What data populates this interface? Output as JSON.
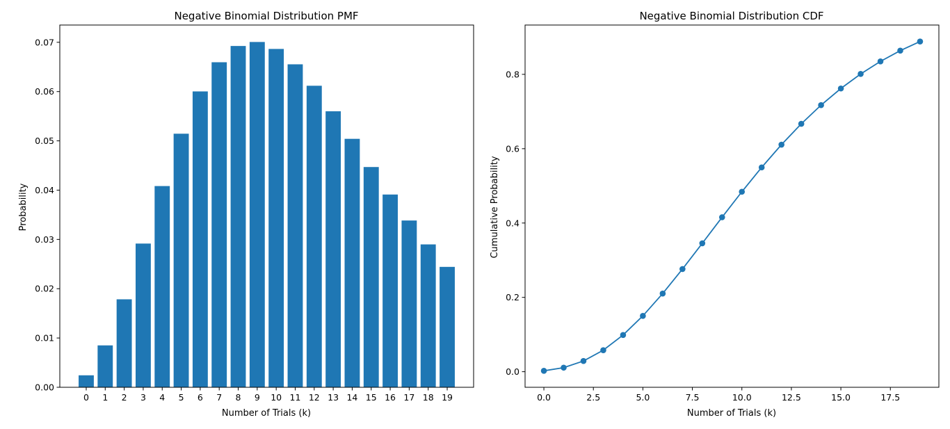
{
  "chart_data": [
    {
      "type": "bar",
      "title": "Negative Binomial Distribution PMF",
      "xlabel": "Number of Trials (k)",
      "ylabel": "Probability",
      "color": "#1f77b4",
      "categories": [
        "0",
        "1",
        "2",
        "3",
        "4",
        "5",
        "6",
        "7",
        "8",
        "9",
        "10",
        "11",
        "12",
        "13",
        "14",
        "15",
        "16",
        "17",
        "18",
        "19"
      ],
      "values": [
        0.00243,
        0.0085,
        0.01785,
        0.02916,
        0.04083,
        0.05145,
        0.06003,
        0.06595,
        0.06925,
        0.07006,
        0.06865,
        0.06553,
        0.06118,
        0.056,
        0.05041,
        0.04469,
        0.03911,
        0.03384,
        0.02899,
        0.02443
      ],
      "ylim": [
        0,
        0.0735
      ],
      "yticks": [
        0.0,
        0.01,
        0.02,
        0.03,
        0.04,
        0.05,
        0.06,
        0.07
      ],
      "ytick_labels": [
        "0.00",
        "0.01",
        "0.02",
        "0.03",
        "0.04",
        "0.05",
        "0.06",
        "0.07"
      ],
      "grid": false,
      "legend": "none"
    },
    {
      "type": "line",
      "title": "Negative Binomial Distribution CDF",
      "xlabel": "Number of Trials (k)",
      "ylabel": "Cumulative Probability",
      "color": "#1f77b4",
      "x": [
        0,
        1,
        2,
        3,
        4,
        5,
        6,
        7,
        8,
        9,
        10,
        11,
        12,
        13,
        14,
        15,
        16,
        17,
        18,
        19
      ],
      "values": [
        0.0024,
        0.0109,
        0.0288,
        0.0579,
        0.0988,
        0.1502,
        0.2103,
        0.2762,
        0.3455,
        0.4155,
        0.4842,
        0.5497,
        0.6109,
        0.6669,
        0.7173,
        0.762,
        0.8011,
        0.8349,
        0.8639,
        0.8884
      ],
      "xlim": [
        -0.95,
        19.95
      ],
      "ylim": [
        -0.0419,
        0.9327
      ],
      "xticks": [
        0.0,
        2.5,
        5.0,
        7.5,
        10.0,
        12.5,
        15.0,
        17.5
      ],
      "xtick_labels": [
        "0.0",
        "2.5",
        "5.0",
        "7.5",
        "10.0",
        "12.5",
        "15.0",
        "17.5"
      ],
      "yticks": [
        0.0,
        0.2,
        0.4,
        0.6,
        0.8
      ],
      "ytick_labels": [
        "0.0",
        "0.2",
        "0.4",
        "0.6",
        "0.8"
      ],
      "markers": true,
      "grid": false,
      "legend": "none"
    }
  ]
}
